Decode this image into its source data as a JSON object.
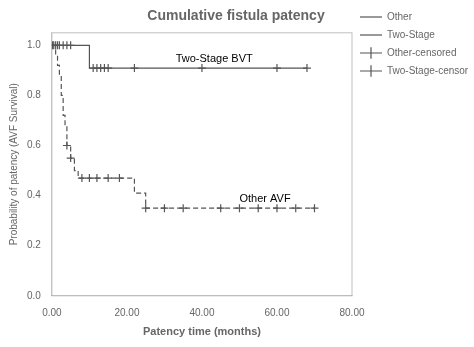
{
  "chart_data": {
    "type": "line",
    "title": "Cumulative fistula patency",
    "xlabel": "Patency time (months)",
    "ylabel": "Probability of patency (AVF Survival)",
    "xlim": [
      0,
      80
    ],
    "ylim": [
      0.0,
      1.05
    ],
    "xticks": [
      {
        "value": 0,
        "label": "0.00"
      },
      {
        "value": 20,
        "label": "20.00"
      },
      {
        "value": 40,
        "label": "40.00"
      },
      {
        "value": 60,
        "label": "60.00"
      },
      {
        "value": 80,
        "label": "80.00"
      }
    ],
    "yticks": [
      {
        "value": 0.0,
        "label": "0.0"
      },
      0.2,
      0.4,
      0.6,
      0.8,
      {
        "value": 1.0,
        "label": "1.0"
      }
    ],
    "grid": false,
    "legend": "right",
    "series": [
      {
        "name": "Other",
        "type": "step",
        "line_style": "dashed",
        "color": "#555555",
        "x": [
          0,
          0.5,
          1.0,
          1.5,
          2.0,
          2.5,
          3.0,
          3.5,
          4.0,
          5.0,
          6.0,
          7.0,
          8.0,
          20.0,
          22.0,
          24.0,
          25.0,
          70.0
        ],
        "values": [
          1.0,
          1.0,
          0.96,
          0.92,
          0.88,
          0.8,
          0.72,
          0.68,
          0.6,
          0.55,
          0.5,
          0.47,
          0.47,
          0.47,
          0.41,
          0.41,
          0.35,
          0.35
        ]
      },
      {
        "name": "Two-Stage",
        "type": "step",
        "line_style": "solid",
        "color": "#555555",
        "x": [
          0,
          0.1,
          0.2,
          0.5,
          1.0,
          1.5,
          2.0,
          3.0,
          4.0,
          5.0,
          10.0,
          11.0,
          68.0
        ],
        "values": [
          1.0,
          1.0,
          1.0,
          1.0,
          1.0,
          1.0,
          1.0,
          1.0,
          1.0,
          1.0,
          0.909,
          0.909,
          0.909
        ]
      },
      {
        "name": "Other-censored",
        "type": "scatter",
        "marker": "plus",
        "color": "#555555",
        "x": [
          4.0,
          5.0,
          8.0,
          10.0,
          12.0,
          15.0,
          18.0,
          25.0,
          30.0,
          35.0,
          45.0,
          50.0,
          55.0,
          60.0,
          65.0,
          70.0
        ],
        "values": [
          0.6,
          0.55,
          0.47,
          0.47,
          0.47,
          0.47,
          0.47,
          0.35,
          0.35,
          0.35,
          0.35,
          0.35,
          0.35,
          0.35,
          0.35,
          0.35
        ]
      },
      {
        "name": "Two-Stage-censored",
        "type": "scatter",
        "marker": "plus",
        "color": "#555555",
        "x": [
          0.2,
          0.5,
          1.0,
          1.5,
          2.0,
          3.0,
          4.0,
          5.0,
          11.0,
          12.0,
          13.0,
          14.0,
          15.0,
          22.0,
          40.0,
          60.0,
          68.0
        ],
        "values": [
          1.0,
          1.0,
          1.0,
          1.0,
          1.0,
          1.0,
          1.0,
          1.0,
          0.909,
          0.909,
          0.909,
          0.909,
          0.909,
          0.909,
          0.909,
          0.909,
          0.909
        ]
      }
    ],
    "annotations": [
      {
        "text": "Two-Stage BVT",
        "x": 33,
        "y": 0.935
      },
      {
        "text": "Other AVF",
        "x": 50,
        "y": 0.375
      }
    ]
  }
}
